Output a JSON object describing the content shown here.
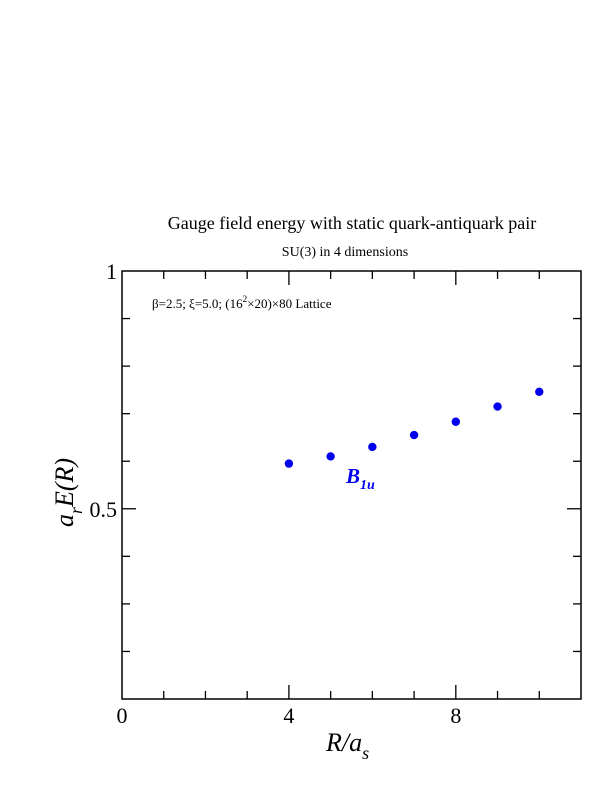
{
  "chart_data": {
    "type": "scatter",
    "title": "Gauge field energy with static quark-antiquark pair",
    "subtitle": "SU(3) in 4 dimensions",
    "xlabel": {
      "main": "R/a",
      "sub": "s"
    },
    "ylabel": {
      "a": "a",
      "sub": "r",
      "rest": "E(R)"
    },
    "xlim": [
      0,
      11
    ],
    "ylim": [
      0.1,
      1.0
    ],
    "xticks": [
      {
        "value": 0,
        "label": "0"
      },
      {
        "value": 4,
        "label": "4"
      },
      {
        "value": 8,
        "label": "8"
      }
    ],
    "yticks": [
      {
        "value": 0.5,
        "label": "0.5"
      },
      {
        "value": 1.0,
        "label": "1"
      }
    ],
    "x_minor_step": 1,
    "y_minor_step": 0.1,
    "annotation": {
      "parts": [
        {
          "text": "β=2.5;  ξ=5.0;  (16",
          "sup": false
        },
        {
          "text": "2",
          "sup": true
        },
        {
          "text": "×20)×80 Lattice",
          "sup": false
        }
      ]
    },
    "series": [
      {
        "label": {
          "main": "B",
          "sub": "1u"
        },
        "color": "#0000ee",
        "points": [
          {
            "x": 4,
            "y": 0.595
          },
          {
            "x": 5,
            "y": 0.61
          },
          {
            "x": 6,
            "y": 0.63
          },
          {
            "x": 7,
            "y": 0.655
          },
          {
            "x": 8,
            "y": 0.683
          },
          {
            "x": 9,
            "y": 0.715
          },
          {
            "x": 10,
            "y": 0.746
          }
        ]
      }
    ]
  }
}
